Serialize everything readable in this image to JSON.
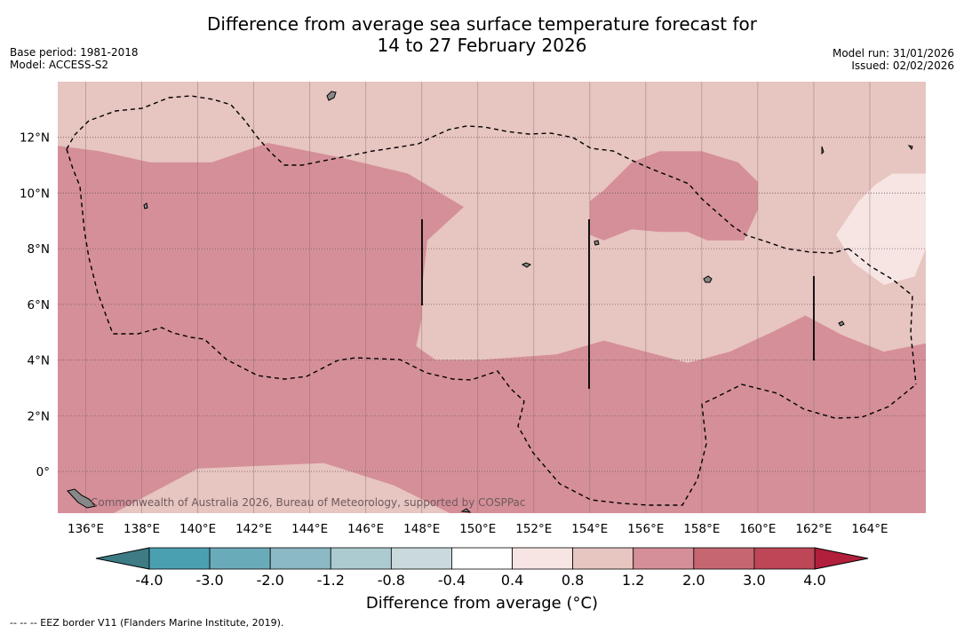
{
  "header": {
    "title_line1": "Difference from average sea surface temperature forecast for",
    "title_line2": "14 to 27 February 2026",
    "base_period": "Base period: 1981-2018",
    "model": "Model: ACCESS-S2",
    "model_run": "Model run: 31/01/2026",
    "issued": "Issued: 02/02/2026"
  },
  "chart_data": {
    "type": "heatmap",
    "title": "Difference from average sea surface temperature forecast for 14 to 27 February 2026",
    "x_axis": {
      "unit": "longitude °E",
      "range": [
        135,
        166
      ],
      "ticks": [
        136,
        138,
        140,
        142,
        144,
        146,
        148,
        150,
        152,
        154,
        156,
        158,
        160,
        162,
        164
      ],
      "tick_labels": [
        "136°E",
        "138°E",
        "140°E",
        "142°E",
        "144°E",
        "146°E",
        "148°E",
        "150°E",
        "152°E",
        "154°E",
        "156°E",
        "158°E",
        "160°E",
        "162°E",
        "164°E"
      ]
    },
    "y_axis": {
      "unit": "latitude",
      "range": [
        -1.5,
        14.0
      ],
      "ticks": [
        0,
        2,
        4,
        6,
        8,
        10,
        12
      ],
      "tick_labels": [
        "0°",
        "2°N",
        "4°N",
        "6°N",
        "8°N",
        "10°N",
        "12°N"
      ]
    },
    "grid": true,
    "colorbar": {
      "title": "Difference from average (°C)",
      "bounds": [
        -4.0,
        -3.0,
        -2.0,
        -1.2,
        -0.8,
        -0.4,
        0.4,
        0.8,
        1.2,
        2.0,
        3.0,
        4.0
      ],
      "bound_labels": [
        "-4.0",
        "-3.0",
        "-2.0",
        "-1.2",
        "-0.8",
        "-0.4",
        "0.4",
        "0.8",
        "1.2",
        "2.0",
        "3.0",
        "4.0"
      ],
      "colors": [
        "#4aa0b1",
        "#6aabba",
        "#8bb9c4",
        "#abcbd0",
        "#c9d9dc",
        "#ffffff",
        "#f6e5e3",
        "#e7c5c0",
        "#d58f98",
        "#c66671",
        "#bd4756"
      ],
      "extend_min_color": "#3d7c85",
      "extend_max_color": "#b11f3c"
    },
    "regions": [
      {
        "name": "warm 1.2–2.0 western",
        "range_c": [
          1.2,
          2.0
        ],
        "color": "#d58f98",
        "polygon": [
          [
            135,
            -1.5
          ],
          [
            135,
            11.7
          ],
          [
            136.5,
            11.5
          ],
          [
            138.3,
            11.1
          ],
          [
            140.5,
            11.1
          ],
          [
            142.5,
            11.8
          ],
          [
            145,
            11.3
          ],
          [
            147.5,
            10.7
          ],
          [
            149.5,
            9.5
          ],
          [
            148.2,
            8.3
          ],
          [
            148.0,
            6.5
          ],
          [
            148.0,
            5.5
          ],
          [
            147.8,
            4.5
          ],
          [
            148.5,
            4.0
          ],
          [
            150,
            4.0
          ],
          [
            152.8,
            4.2
          ],
          [
            154.5,
            4.7
          ],
          [
            157.5,
            3.9
          ],
          [
            159,
            4.3
          ],
          [
            160.5,
            5.0
          ],
          [
            161.7,
            5.6
          ],
          [
            163,
            4.9
          ],
          [
            164.5,
            4.3
          ],
          [
            166,
            4.6
          ],
          [
            166,
            -1.5
          ],
          [
            149,
            -1.5
          ],
          [
            147,
            -0.5
          ],
          [
            144.5,
            0.3
          ],
          [
            140,
            0.1
          ],
          [
            137,
            -1.5
          ]
        ]
      },
      {
        "name": "warm 1.2–2.0 northern",
        "range_c": [
          1.2,
          2.0
        ],
        "color": "#d58f98",
        "polygon": [
          [
            154,
            8.5
          ],
          [
            154,
            9.7
          ],
          [
            154.5,
            10.1
          ],
          [
            155.5,
            11.1
          ],
          [
            156.5,
            11.5
          ],
          [
            158,
            11.5
          ],
          [
            159.3,
            11.1
          ],
          [
            160,
            10.4
          ],
          [
            160,
            9.4
          ],
          [
            159.5,
            8.3
          ],
          [
            158.2,
            8.3
          ],
          [
            157.5,
            8.6
          ],
          [
            156.5,
            8.6
          ],
          [
            155.5,
            8.7
          ],
          [
            154.5,
            8.3
          ]
        ]
      },
      {
        "name": "near-average 0.4–0.8 eastern",
        "range_c": [
          0.4,
          0.8
        ],
        "color": "#f6e5e3",
        "polygon": [
          [
            162.8,
            8.5
          ],
          [
            163.6,
            9.7
          ],
          [
            164.2,
            10.3
          ],
          [
            164.8,
            10.7
          ],
          [
            166,
            10.7
          ],
          [
            166,
            8.0
          ],
          [
            165.6,
            7.0
          ],
          [
            164.5,
            6.7
          ],
          [
            163.4,
            7.5
          ]
        ]
      }
    ],
    "background_range_c": [
      0.8,
      1.2
    ],
    "background_color": "#e7c5c0",
    "eez_borders_note": "EEZ border V11 (Flanders Marine Institute, 2019)."
  },
  "copyright": "Commonwealth of Australia 2026, Bureau of Meteorology, supported by COSPPac",
  "footnote": "--  --  -- EEZ border V11 (Flanders Marine Institute, 2019)."
}
